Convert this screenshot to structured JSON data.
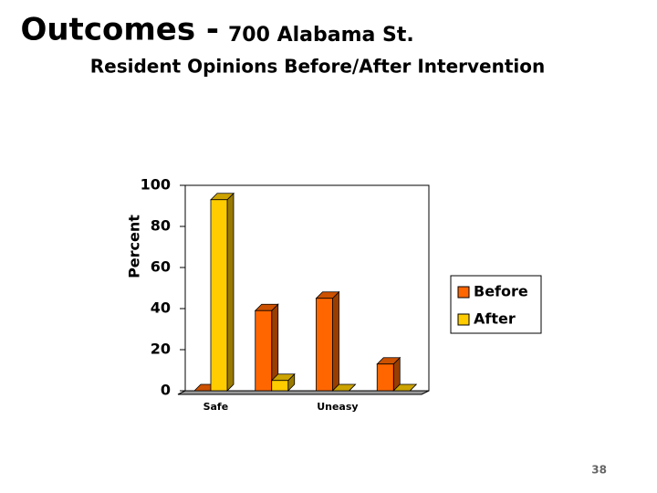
{
  "page_number": "38",
  "chart_data": {
    "type": "bar3d",
    "title": "Outcomes -",
    "title_location": "700 Alabama St.",
    "subtitle": "Resident Opinions Before/After Intervention",
    "y_label": "Percent",
    "categories": [
      "Safe",
      null,
      "Uneasy",
      null
    ],
    "series": [
      {
        "name": "Before",
        "color": "#ff6600",
        "values": [
          0,
          39,
          45,
          13
        ]
      },
      {
        "name": "After",
        "color": "#ffcc00",
        "values": [
          93,
          5,
          0,
          0
        ]
      }
    ],
    "ylim": [
      0,
      100
    ],
    "yticks": [
      0,
      20,
      40,
      60,
      80,
      100
    ]
  }
}
